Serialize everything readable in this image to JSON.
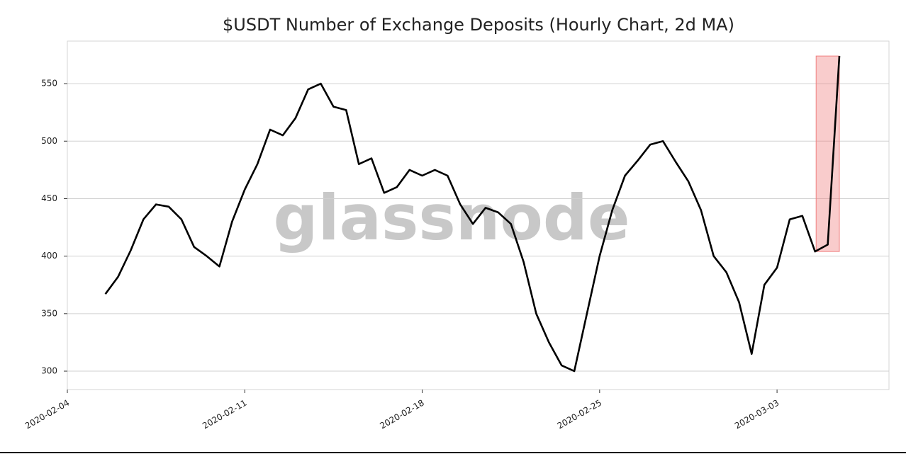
{
  "chart_data": {
    "type": "line",
    "title": "$USDT Number of Exchange Deposits (Hourly Chart, 2d MA)",
    "watermark": "glassnode",
    "x": [
      "2020-02-05 12:00",
      "2020-02-06 00:00",
      "2020-02-06 12:00",
      "2020-02-07 00:00",
      "2020-02-07 12:00",
      "2020-02-08 00:00",
      "2020-02-08 12:00",
      "2020-02-09 00:00",
      "2020-02-09 12:00",
      "2020-02-10 00:00",
      "2020-02-10 12:00",
      "2020-02-11 00:00",
      "2020-02-11 12:00",
      "2020-02-12 00:00",
      "2020-02-12 12:00",
      "2020-02-13 00:00",
      "2020-02-13 12:00",
      "2020-02-14 00:00",
      "2020-02-14 12:00",
      "2020-02-15 00:00",
      "2020-02-15 12:00",
      "2020-02-16 00:00",
      "2020-02-16 12:00",
      "2020-02-17 00:00",
      "2020-02-17 12:00",
      "2020-02-18 00:00",
      "2020-02-18 12:00",
      "2020-02-19 00:00",
      "2020-02-19 12:00",
      "2020-02-20 00:00",
      "2020-02-20 12:00",
      "2020-02-21 00:00",
      "2020-02-21 12:00",
      "2020-02-22 00:00",
      "2020-02-22 12:00",
      "2020-02-23 00:00",
      "2020-02-23 12:00",
      "2020-02-24 00:00",
      "2020-02-24 12:00",
      "2020-02-25 00:00",
      "2020-02-25 12:00",
      "2020-02-26 00:00",
      "2020-02-26 12:00",
      "2020-02-27 00:00",
      "2020-02-27 12:00",
      "2020-02-28 00:00",
      "2020-02-28 12:00",
      "2020-02-29 00:00",
      "2020-02-29 12:00",
      "2020-03-01 00:00",
      "2020-03-01 12:00",
      "2020-03-02 00:00",
      "2020-03-02 12:00",
      "2020-03-03 00:00",
      "2020-03-03 12:00",
      "2020-03-04 00:00",
      "2020-03-04 12:00",
      "2020-03-05 00:00",
      "2020-03-05 11:00"
    ],
    "series": [
      {
        "name": "Number of Exchange Deposits",
        "color": "#000000",
        "values": [
          367,
          382,
          405,
          432,
          445,
          443,
          432,
          408,
          400,
          391,
          430,
          458,
          480,
          510,
          505,
          520,
          545,
          550,
          530,
          527,
          480,
          485,
          455,
          460,
          475,
          470,
          475,
          470,
          445,
          428,
          442,
          438,
          428,
          395,
          350,
          325,
          305,
          300,
          350,
          400,
          440,
          470,
          483,
          497,
          500,
          482,
          465,
          440,
          400,
          386,
          360,
          315,
          375,
          390,
          432,
          435,
          404,
          410,
          574
        ]
      }
    ],
    "highlight": {
      "x": [
        "2020-03-04 13:00",
        "2020-03-05 11:00"
      ],
      "y": [
        404,
        574
      ],
      "color": "#f08080"
    },
    "xlim": [
      "2020-02-04 00:00",
      "2020-03-07 10:00"
    ],
    "xticks": [
      "2020-02-04",
      "2020-02-11",
      "2020-02-18",
      "2020-02-25",
      "2020-03-03"
    ],
    "ylim": [
      284,
      587
    ],
    "yticks": [
      300,
      350,
      400,
      450,
      500,
      550
    ],
    "grid": true
  }
}
